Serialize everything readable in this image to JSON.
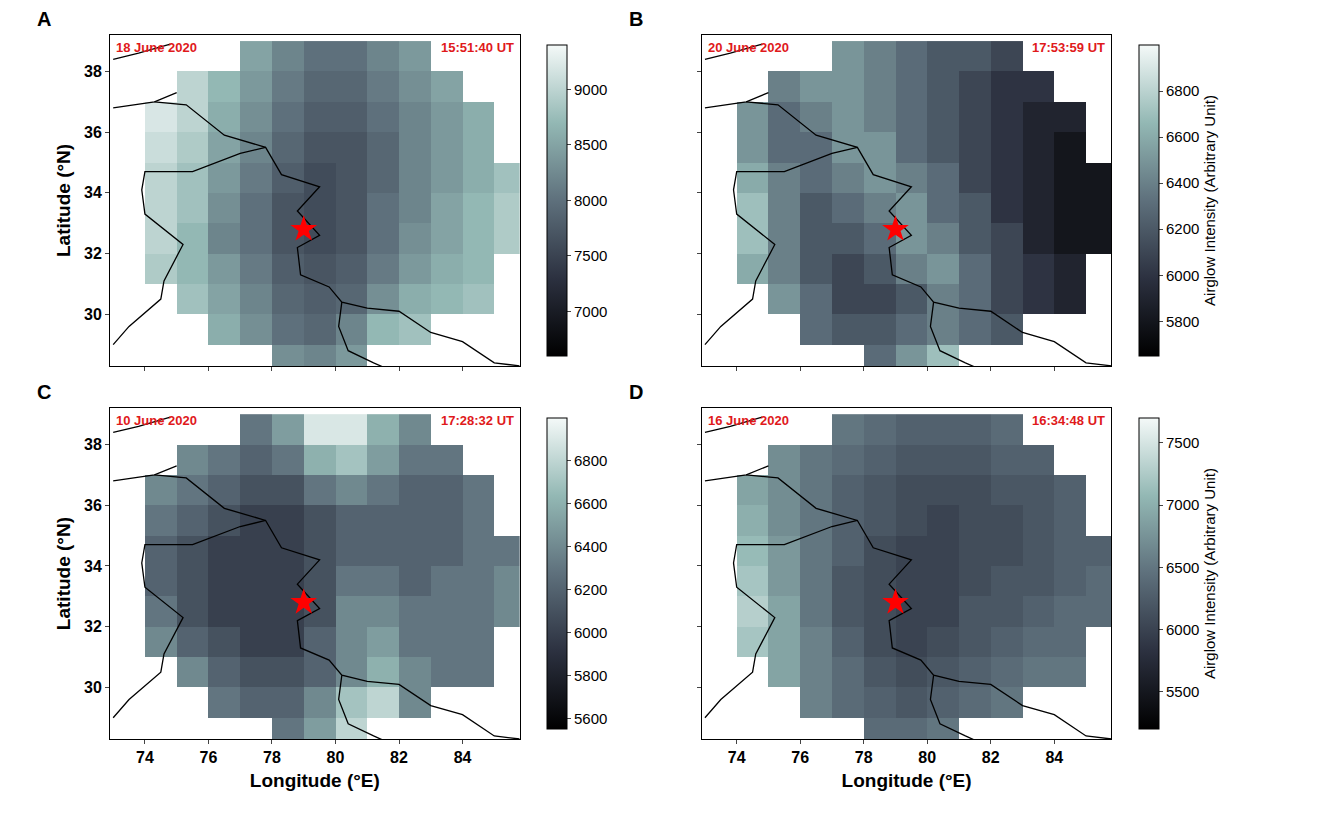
{
  "chart_data": {
    "type": "heatmap",
    "xlabel": "Longitude (°E)",
    "ylabel": "Latitude (°N)",
    "xlim": [
      72.9,
      85.8
    ],
    "ylim": [
      28.3,
      39.2
    ],
    "xticks": [
      74,
      76,
      78,
      80,
      82,
      84
    ],
    "yticks": [
      30,
      32,
      34,
      36,
      38
    ],
    "x": [
      73.5,
      74.5,
      75.5,
      76.5,
      77.5,
      78.5,
      79.5,
      80.5,
      81.5,
      82.5,
      83.5,
      84.5,
      85.5
    ],
    "y": [
      28.5,
      29.5,
      30.5,
      31.5,
      32.5,
      33.5,
      34.5,
      35.5,
      36.5,
      37.5,
      38.5
    ],
    "star": {
      "lon": 79.0,
      "lat": 32.8,
      "color": "#ff0000",
      "marker": "star"
    },
    "borders": [
      {
        "lon": [
          74.3,
          75.3,
          76.5,
          77.8,
          78.3,
          79.5,
          78.8,
          79.5,
          78.8,
          78.9,
          79.8,
          80.2,
          81.0,
          82.0,
          83.0,
          84.0,
          85.0,
          85.8
        ],
        "lat": [
          37.0,
          36.9,
          35.9,
          35.5,
          34.6,
          34.2,
          33.4,
          32.6,
          32.2,
          31.3,
          30.9,
          30.4,
          30.2,
          30.1,
          29.4,
          29.1,
          28.4,
          28.3
        ]
      },
      {
        "lon": [
          73.0,
          73.5,
          74.5,
          74.6,
          75.2,
          74.6,
          74.0,
          73.9,
          74.0,
          75.5,
          77.0,
          77.8
        ],
        "lat": [
          29.0,
          29.6,
          30.5,
          31.1,
          32.3,
          32.8,
          33.3,
          34.1,
          34.7,
          34.7,
          35.3,
          35.5
        ]
      },
      {
        "lon": [
          80.2,
          80.1,
          80.4,
          81.2,
          82.5
        ],
        "lat": [
          30.4,
          29.6,
          28.8,
          28.4,
          27.8
        ]
      },
      {
        "lon": [
          73.0,
          74.3,
          75.0
        ],
        "lat": [
          36.8,
          37.0,
          37.3
        ]
      },
      {
        "lon": [
          73.0,
          73.8,
          74.8
        ],
        "lat": [
          38.4,
          38.6,
          38.9
        ]
      }
    ],
    "panels": [
      {
        "letter": "A",
        "date": "18 June 2020",
        "time": "15:51:40 UT",
        "tick_labels": "y",
        "zlim": [
          6600,
          9400
        ],
        "zticks": [
          7000,
          7500,
          8000,
          8500,
          9000
        ],
        "values": [
          [
            null,
            null,
            null,
            null,
            null,
            8300,
            8200,
            8400,
            null,
            null,
            null,
            null,
            null
          ],
          [
            null,
            null,
            null,
            8600,
            8300,
            8000,
            7900,
            8200,
            8700,
            8800,
            null,
            null,
            null
          ],
          [
            null,
            null,
            8800,
            8500,
            8200,
            7900,
            7800,
            7900,
            8300,
            8600,
            8700,
            8800,
            null
          ],
          [
            null,
            8900,
            8700,
            8400,
            8100,
            7800,
            7700,
            7800,
            8100,
            8400,
            8600,
            8700,
            null
          ],
          [
            null,
            9000,
            8700,
            8200,
            8000,
            7700,
            7600,
            7700,
            8000,
            8300,
            8500,
            8700,
            8900
          ],
          [
            null,
            9000,
            8800,
            8300,
            8000,
            7700,
            7600,
            7700,
            8000,
            8200,
            8500,
            8700,
            8900
          ],
          [
            null,
            9000,
            8800,
            8400,
            8100,
            7800,
            7600,
            7700,
            7900,
            8200,
            8400,
            8600,
            8800
          ],
          [
            null,
            9100,
            8900,
            8500,
            8200,
            7900,
            7700,
            7700,
            7900,
            8200,
            8400,
            8600,
            null
          ],
          [
            null,
            9200,
            9000,
            8600,
            8300,
            8000,
            7800,
            7800,
            8000,
            8200,
            8400,
            8600,
            null
          ],
          [
            null,
            null,
            9000,
            8700,
            8400,
            8100,
            7900,
            7900,
            8100,
            8300,
            8500,
            null,
            null
          ],
          [
            null,
            null,
            null,
            null,
            8500,
            8200,
            8000,
            8000,
            8200,
            8400,
            null,
            null,
            null
          ]
        ]
      },
      {
        "letter": "B",
        "date": "20 June 2020",
        "time": "17:53:59 UT",
        "tick_labels": false,
        "zlim": [
          5650,
          7000
        ],
        "zticks": [
          5800,
          6000,
          6200,
          6400,
          6600,
          6800
        ],
        "colorbar_title": "Airglow Intensity (Arbitrary Unit)",
        "values": [
          [
            null,
            null,
            null,
            null,
            null,
            6300,
            6500,
            6700,
            null,
            null,
            null,
            null,
            null
          ],
          [
            null,
            null,
            null,
            6300,
            6200,
            6200,
            6300,
            6400,
            6300,
            6200,
            null,
            null,
            null
          ],
          [
            null,
            null,
            6500,
            6300,
            6100,
            6100,
            6200,
            6400,
            6300,
            6100,
            6000,
            5900,
            null
          ],
          [
            null,
            6600,
            6400,
            6200,
            6100,
            6200,
            6400,
            6500,
            6300,
            6100,
            6000,
            5900,
            null
          ],
          [
            null,
            6700,
            6400,
            6200,
            6200,
            6300,
            6500,
            6400,
            6200,
            6100,
            5900,
            5800,
            5800
          ],
          [
            null,
            6700,
            6400,
            6200,
            6300,
            6400,
            6500,
            6300,
            6200,
            6000,
            5900,
            5800,
            5800
          ],
          [
            null,
            6600,
            6400,
            6300,
            6400,
            6500,
            6400,
            6300,
            6100,
            6000,
            5900,
            5800,
            5800
          ],
          [
            null,
            6500,
            6300,
            6300,
            6500,
            6500,
            6300,
            6200,
            6100,
            6000,
            5900,
            5800,
            null
          ],
          [
            null,
            6500,
            6300,
            6400,
            6500,
            6400,
            6300,
            6200,
            6100,
            6000,
            5900,
            5900,
            null
          ],
          [
            null,
            null,
            6400,
            6500,
            6500,
            6400,
            6300,
            6200,
            6100,
            6000,
            6000,
            null,
            null
          ],
          [
            null,
            null,
            null,
            null,
            6500,
            6400,
            6300,
            6200,
            6200,
            6100,
            null,
            null,
            null
          ]
        ]
      },
      {
        "letter": "C",
        "date": "10 June 2020",
        "time": "17:28:32 UT",
        "tick_labels": true,
        "zlim": [
          5550,
          7000
        ],
        "zticks": [
          5600,
          5800,
          6000,
          6200,
          6400,
          6600,
          6800
        ],
        "values": [
          [
            null,
            null,
            null,
            null,
            null,
            6300,
            6500,
            6800,
            null,
            null,
            null,
            null,
            null
          ],
          [
            null,
            null,
            null,
            6300,
            6200,
            6200,
            6400,
            6700,
            6800,
            6400,
            null,
            null,
            null
          ],
          [
            null,
            null,
            6400,
            6200,
            6100,
            6100,
            6200,
            6400,
            6600,
            6400,
            6300,
            6300,
            null
          ],
          [
            null,
            6400,
            6200,
            6100,
            6000,
            6000,
            6200,
            6400,
            6500,
            6300,
            6300,
            6300,
            null
          ],
          [
            null,
            6300,
            6100,
            6000,
            6000,
            6000,
            6100,
            6400,
            6400,
            6300,
            6300,
            6300,
            6400
          ],
          [
            null,
            6200,
            6100,
            6000,
            6000,
            6000,
            6100,
            6300,
            6300,
            6200,
            6300,
            6300,
            6400
          ],
          [
            null,
            6200,
            6100,
            6000,
            6000,
            6000,
            6100,
            6200,
            6200,
            6200,
            6200,
            6300,
            6300
          ],
          [
            null,
            6300,
            6200,
            6100,
            6000,
            6000,
            6100,
            6200,
            6200,
            6200,
            6200,
            6300,
            null
          ],
          [
            null,
            6400,
            6300,
            6200,
            6100,
            6100,
            6300,
            6400,
            6300,
            6200,
            6200,
            6300,
            null
          ],
          [
            null,
            null,
            6400,
            6300,
            6200,
            6300,
            6600,
            6700,
            6500,
            6300,
            6300,
            null,
            null
          ],
          [
            null,
            null,
            null,
            null,
            6300,
            6500,
            6900,
            6900,
            6600,
            6400,
            null,
            null,
            null
          ]
        ]
      },
      {
        "letter": "D",
        "date": "16 June 2020",
        "time": "16:34:48 UT",
        "tick_labels": "x",
        "zlim": [
          5200,
          7700
        ],
        "zticks": [
          5500,
          6000,
          6500,
          7000,
          7500
        ],
        "colorbar_title": "Airglow Intensity (Arbitrary Unit)",
        "values": [
          [
            null,
            null,
            null,
            null,
            null,
            6400,
            6400,
            6500,
            null,
            null,
            null,
            null,
            null
          ],
          [
            null,
            null,
            null,
            6600,
            6400,
            6300,
            6200,
            6300,
            6400,
            6500,
            null,
            null,
            null
          ],
          [
            null,
            null,
            6900,
            6600,
            6400,
            6200,
            6100,
            6200,
            6300,
            6400,
            6500,
            6500,
            null
          ],
          [
            null,
            7200,
            6900,
            6600,
            6300,
            6100,
            6000,
            6100,
            6200,
            6300,
            6400,
            6400,
            null
          ],
          [
            null,
            7300,
            6900,
            6500,
            6200,
            6100,
            6000,
            6000,
            6200,
            6200,
            6300,
            6400,
            6400
          ],
          [
            null,
            7200,
            6800,
            6500,
            6200,
            6100,
            6000,
            6000,
            6100,
            6200,
            6200,
            6300,
            6400
          ],
          [
            null,
            7100,
            6800,
            6500,
            6300,
            6100,
            6000,
            6000,
            6100,
            6100,
            6200,
            6300,
            6300
          ],
          [
            null,
            7000,
            6700,
            6500,
            6300,
            6200,
            6100,
            6000,
            6100,
            6100,
            6200,
            6300,
            null
          ],
          [
            null,
            6900,
            6700,
            6500,
            6300,
            6200,
            6100,
            6100,
            6100,
            6200,
            6200,
            6300,
            null
          ],
          [
            null,
            null,
            6700,
            6500,
            6400,
            6300,
            6200,
            6200,
            6200,
            6300,
            6300,
            null,
            null
          ],
          [
            null,
            null,
            null,
            null,
            6500,
            6400,
            6300,
            6300,
            6300,
            6400,
            null,
            null,
            null
          ]
        ]
      }
    ]
  }
}
